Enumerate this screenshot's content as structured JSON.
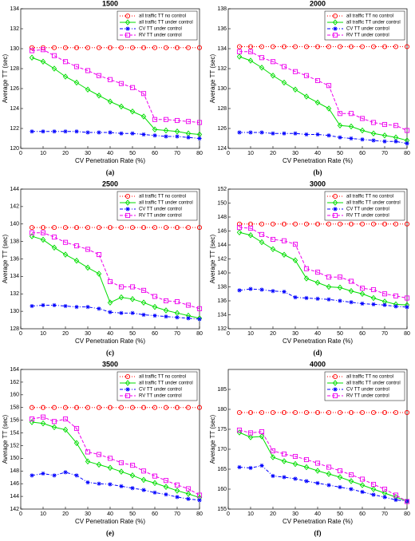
{
  "chart_data": [
    {
      "type": "line",
      "title": "1500",
      "caption": "(a)",
      "x_label": "CV Penetration Rate (%)",
      "y_label": "Average TT (sec)",
      "x": [
        5,
        10,
        15,
        20,
        25,
        30,
        35,
        40,
        45,
        50,
        55,
        60,
        65,
        70,
        75,
        80
      ],
      "xlim": [
        0,
        80
      ],
      "xticks": [
        0,
        10,
        20,
        30,
        40,
        50,
        60,
        70,
        80
      ],
      "ylim": [
        120,
        134
      ],
      "yticks": [
        120,
        122,
        124,
        126,
        128,
        130,
        132,
        134
      ],
      "legend": "upper right",
      "series": [
        {
          "name": "all traffic TT no control",
          "color": "#ff0000",
          "linestyle": "dotted",
          "marker": "circle",
          "values": [
            130.1,
            130.1,
            130.1,
            130.1,
            130.1,
            130.1,
            130.1,
            130.1,
            130.1,
            130.1,
            130.1,
            130.1,
            130.1,
            130.1,
            130.1,
            130.1
          ]
        },
        {
          "name": "all traffic TT under control",
          "color": "#00dd00",
          "linestyle": "solid",
          "marker": "diamond",
          "values": [
            129.1,
            128.7,
            128.0,
            127.2,
            126.6,
            125.9,
            125.3,
            124.7,
            124.2,
            123.7,
            123.2,
            121.9,
            121.8,
            121.7,
            121.5,
            121.4
          ]
        },
        {
          "name": "CV TT under control",
          "color": "#0000ff",
          "linestyle": "dashdot",
          "marker": "asterisk",
          "values": [
            121.7,
            121.7,
            121.7,
            121.7,
            121.7,
            121.6,
            121.6,
            121.6,
            121.5,
            121.5,
            121.4,
            121.3,
            121.2,
            121.2,
            121.1,
            121.0
          ]
        },
        {
          "name": "RV TT under control",
          "color": "#ee00ee",
          "linestyle": "dashed",
          "marker": "square",
          "values": [
            129.8,
            129.9,
            129.3,
            128.7,
            128.2,
            127.8,
            127.3,
            126.9,
            126.5,
            126.1,
            125.5,
            122.9,
            122.9,
            122.8,
            122.7,
            122.6
          ]
        }
      ]
    },
    {
      "type": "line",
      "title": "2000",
      "caption": "(b)",
      "x_label": "CV Penetration Rate (%)",
      "y_label": "Average TT (sec)",
      "x": [
        5,
        10,
        15,
        20,
        25,
        30,
        35,
        40,
        45,
        50,
        55,
        60,
        65,
        70,
        75,
        80
      ],
      "xlim": [
        0,
        80
      ],
      "xticks": [
        0,
        10,
        20,
        30,
        40,
        50,
        60,
        70,
        80
      ],
      "ylim": [
        124,
        138
      ],
      "yticks": [
        124,
        126,
        128,
        130,
        132,
        134,
        136,
        138
      ],
      "legend": "upper right",
      "series": [
        {
          "name": "all traffic TT no control",
          "color": "#ff0000",
          "linestyle": "dotted",
          "marker": "circle",
          "values": [
            134.2,
            134.2,
            134.2,
            134.2,
            134.2,
            134.2,
            134.2,
            134.2,
            134.2,
            134.2,
            134.2,
            134.2,
            134.2,
            134.2,
            134.2,
            134.2
          ]
        },
        {
          "name": "all traffic TT under control",
          "color": "#00dd00",
          "linestyle": "solid",
          "marker": "diamond",
          "values": [
            133.2,
            132.8,
            132.1,
            131.3,
            130.6,
            129.9,
            129.2,
            128.6,
            128.0,
            126.3,
            126.2,
            125.8,
            125.5,
            125.3,
            125.1,
            124.8
          ]
        },
        {
          "name": "CV TT under control",
          "color": "#0000ff",
          "linestyle": "dashdot",
          "marker": "asterisk",
          "values": [
            125.6,
            125.6,
            125.6,
            125.5,
            125.5,
            125.5,
            125.4,
            125.4,
            125.3,
            125.1,
            125.0,
            124.9,
            124.8,
            124.7,
            124.7,
            124.5
          ]
        },
        {
          "name": "RV TT under control",
          "color": "#ee00ee",
          "linestyle": "dashed",
          "marker": "square",
          "values": [
            133.7,
            133.7,
            133.1,
            132.7,
            132.2,
            131.7,
            131.3,
            130.8,
            130.3,
            127.5,
            127.5,
            127.0,
            126.6,
            126.4,
            126.3,
            125.8
          ]
        }
      ]
    },
    {
      "type": "line",
      "title": "2500",
      "caption": "(c)",
      "x_label": "CV Penetration Rate (%)",
      "y_label": "Average TT (sec)",
      "x": [
        5,
        10,
        15,
        20,
        25,
        30,
        35,
        40,
        45,
        50,
        55,
        60,
        65,
        70,
        75,
        80
      ],
      "xlim": [
        0,
        80
      ],
      "xticks": [
        0,
        10,
        20,
        30,
        40,
        50,
        60,
        70,
        80
      ],
      "ylim": [
        128,
        144
      ],
      "yticks": [
        128,
        130,
        132,
        134,
        136,
        138,
        140,
        142,
        144
      ],
      "legend": "upper right",
      "series": [
        {
          "name": "all traffic TT no control",
          "color": "#ff0000",
          "linestyle": "dotted",
          "marker": "circle",
          "values": [
            139.6,
            139.6,
            139.6,
            139.6,
            139.6,
            139.6,
            139.6,
            139.6,
            139.6,
            139.6,
            139.6,
            139.6,
            139.6,
            139.6,
            139.6,
            139.6
          ]
        },
        {
          "name": "all traffic TT under control",
          "color": "#00dd00",
          "linestyle": "solid",
          "marker": "diamond",
          "values": [
            138.6,
            138.2,
            137.3,
            136.5,
            135.8,
            135.0,
            134.3,
            131.0,
            131.6,
            131.4,
            131.0,
            130.5,
            130.1,
            129.8,
            129.5,
            129.2
          ]
        },
        {
          "name": "CV TT under control",
          "color": "#0000ff",
          "linestyle": "dashdot",
          "marker": "asterisk",
          "values": [
            130.6,
            130.7,
            130.7,
            130.6,
            130.5,
            130.5,
            130.3,
            129.9,
            129.8,
            129.8,
            129.6,
            129.5,
            129.4,
            129.3,
            129.2,
            129.1
          ]
        },
        {
          "name": "RV TT under control",
          "color": "#ee00ee",
          "linestyle": "dashed",
          "marker": "square",
          "values": [
            139.0,
            139.0,
            138.5,
            137.9,
            137.5,
            137.1,
            136.5,
            133.4,
            132.8,
            132.8,
            132.4,
            131.7,
            131.2,
            131.1,
            130.7,
            130.3
          ]
        }
      ]
    },
    {
      "type": "line",
      "title": "3000",
      "caption": "(d)",
      "x_label": "CV Penetration Rate (%)",
      "y_label": "Average TT (sec)",
      "x": [
        5,
        10,
        15,
        20,
        25,
        30,
        35,
        40,
        45,
        50,
        55,
        60,
        65,
        70,
        75,
        80
      ],
      "xlim": [
        0,
        80
      ],
      "xticks": [
        0,
        10,
        20,
        30,
        40,
        50,
        60,
        70,
        80
      ],
      "ylim": [
        132,
        152
      ],
      "yticks": [
        132,
        134,
        136,
        138,
        140,
        142,
        144,
        146,
        148,
        150,
        152
      ],
      "legend": "upper right",
      "series": [
        {
          "name": "all traffic TT no control",
          "color": "#ff0000",
          "linestyle": "dotted",
          "marker": "circle",
          "values": [
            147.0,
            147.0,
            147.0,
            147.0,
            147.0,
            147.0,
            147.0,
            147.0,
            147.0,
            147.0,
            147.0,
            147.0,
            147.0,
            147.0,
            147.0,
            147.0
          ]
        },
        {
          "name": "all traffic TT under control",
          "color": "#00dd00",
          "linestyle": "solid",
          "marker": "diamond",
          "values": [
            145.8,
            145.4,
            144.4,
            143.4,
            142.6,
            141.8,
            139.2,
            138.6,
            138.0,
            137.9,
            137.4,
            137.0,
            136.4,
            135.9,
            135.5,
            135.4
          ]
        },
        {
          "name": "CV TT under control",
          "color": "#0000ff",
          "linestyle": "dashdot",
          "marker": "asterisk",
          "values": [
            137.5,
            137.7,
            137.6,
            137.4,
            137.3,
            136.5,
            136.4,
            136.3,
            136.2,
            136.0,
            135.8,
            135.6,
            135.5,
            135.4,
            135.2,
            135.1
          ]
        },
        {
          "name": "RV TT under control",
          "color": "#ee00ee",
          "linestyle": "dashed",
          "marker": "square",
          "values": [
            146.5,
            146.4,
            145.5,
            144.8,
            144.6,
            144.1,
            140.6,
            140.1,
            139.4,
            139.4,
            138.8,
            137.8,
            137.6,
            137.0,
            136.7,
            136.4
          ]
        }
      ]
    },
    {
      "type": "line",
      "title": "3500",
      "caption": "(e)",
      "x_label": "CV Penetration Rate (%)",
      "y_label": "Average TT (sec)",
      "x": [
        5,
        10,
        15,
        20,
        25,
        30,
        35,
        40,
        45,
        50,
        55,
        60,
        65,
        70,
        75,
        80
      ],
      "xlim": [
        0,
        80
      ],
      "xticks": [
        0,
        10,
        20,
        30,
        40,
        50,
        60,
        70,
        80
      ],
      "ylim": [
        142,
        164
      ],
      "yticks": [
        142,
        144,
        146,
        148,
        150,
        152,
        154,
        156,
        158,
        160,
        162,
        164
      ],
      "legend": "upper right",
      "series": [
        {
          "name": "all traffic TT no control",
          "color": "#ff0000",
          "linestyle": "dotted",
          "marker": "circle",
          "values": [
            158.0,
            158.0,
            158.0,
            158.0,
            158.0,
            158.0,
            158.0,
            158.0,
            158.0,
            158.0,
            158.0,
            158.0,
            158.0,
            158.0,
            158.0,
            158.0
          ]
        },
        {
          "name": "all traffic TT under control",
          "color": "#00dd00",
          "linestyle": "solid",
          "marker": "diamond",
          "values": [
            155.7,
            155.5,
            154.9,
            154.5,
            152.4,
            149.5,
            149.0,
            148.5,
            147.9,
            147.3,
            146.6,
            146.1,
            145.5,
            144.9,
            144.4,
            143.8
          ]
        },
        {
          "name": "CV TT under control",
          "color": "#0000ff",
          "linestyle": "dashdot",
          "marker": "asterisk",
          "values": [
            147.3,
            147.6,
            147.3,
            147.8,
            147.3,
            146.2,
            146.0,
            145.9,
            145.6,
            145.3,
            145.0,
            144.6,
            144.3,
            143.9,
            143.6,
            143.4
          ]
        },
        {
          "name": "RV TT under control",
          "color": "#ee00ee",
          "linestyle": "dashed",
          "marker": "square",
          "values": [
            156.2,
            156.5,
            155.8,
            156.2,
            154.7,
            151.0,
            150.6,
            150.0,
            149.3,
            148.9,
            148.0,
            147.2,
            146.5,
            145.8,
            145.2,
            144.2
          ]
        }
      ]
    },
    {
      "type": "line",
      "title": "4000",
      "caption": "(f)",
      "x_label": "CV Penetration Rate (%)",
      "y_label": "Average TT (sec)",
      "x": [
        5,
        10,
        15,
        20,
        25,
        30,
        35,
        40,
        45,
        50,
        55,
        60,
        65,
        70,
        75,
        80
      ],
      "xlim": [
        0,
        80
      ],
      "xticks": [
        0,
        10,
        20,
        30,
        40,
        50,
        60,
        70,
        80
      ],
      "ylim": [
        155,
        190
      ],
      "yticks": [
        155,
        160,
        165,
        170,
        175,
        180,
        185
      ],
      "legend": "upper right",
      "series": [
        {
          "name": "all traffic TT no control",
          "color": "#ff0000",
          "linestyle": "dotted",
          "marker": "circle",
          "values": [
            179.2,
            179.2,
            179.2,
            179.2,
            179.2,
            179.2,
            179.2,
            179.2,
            179.2,
            179.2,
            179.2,
            179.2,
            179.2,
            179.2,
            179.2,
            179.2
          ]
        },
        {
          "name": "all traffic TT under control",
          "color": "#00dd00",
          "linestyle": "solid",
          "marker": "diamond",
          "values": [
            174.2,
            173.0,
            173.2,
            168.0,
            167.0,
            166.3,
            165.5,
            164.6,
            163.8,
            163.0,
            162.0,
            161.0,
            160.0,
            159.0,
            158.0,
            157.0
          ]
        },
        {
          "name": "CV TT under control",
          "color": "#0000ff",
          "linestyle": "dashdot",
          "marker": "asterisk",
          "values": [
            165.5,
            165.3,
            165.9,
            163.3,
            163.0,
            162.6,
            162.0,
            161.5,
            161.0,
            160.5,
            160.0,
            159.3,
            158.6,
            158.0,
            157.3,
            157.0
          ]
        },
        {
          "name": "RV TT under control",
          "color": "#ee00ee",
          "linestyle": "dashed",
          "marker": "square",
          "values": [
            174.8,
            174.1,
            174.4,
            169.6,
            168.8,
            168.2,
            167.4,
            166.5,
            165.5,
            164.6,
            163.6,
            162.5,
            161.2,
            160.0,
            158.5,
            156.9
          ]
        }
      ]
    }
  ]
}
